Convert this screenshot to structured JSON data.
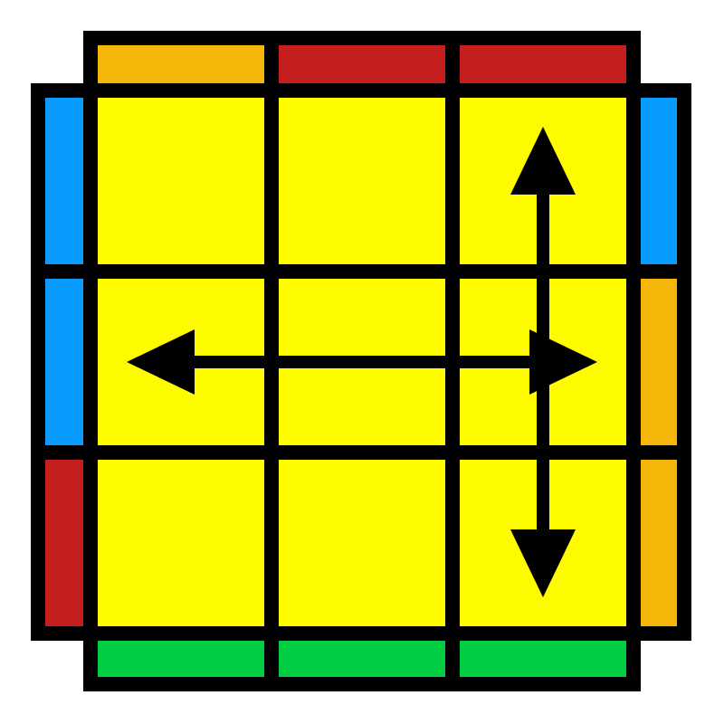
{
  "diagram": {
    "type": "rubiks-oll-top-view",
    "colors": {
      "yellow": "#FFFC00",
      "orange": "#F5B60A",
      "red": "#C41E1E",
      "blue": "#0A9BFF",
      "green": "#00CC44",
      "outline": "#000000",
      "arrow": "#000000"
    },
    "top_face": [
      [
        "yellow",
        "yellow",
        "yellow"
      ],
      [
        "yellow",
        "yellow",
        "yellow"
      ],
      [
        "yellow",
        "yellow",
        "yellow"
      ]
    ],
    "side_stickers": {
      "back": [
        "orange",
        "red",
        "red"
      ],
      "left": [
        "blue",
        "blue",
        "red"
      ],
      "right": [
        "blue",
        "orange",
        "orange"
      ],
      "front": [
        "green",
        "green",
        "green"
      ]
    },
    "arrows": [
      {
        "name": "swap-middle-row-arrow",
        "from": [
          1,
          0
        ],
        "to": [
          1,
          2
        ],
        "double_headed": true
      },
      {
        "name": "swap-right-column-arrow",
        "from": [
          0,
          2
        ],
        "to": [
          2,
          2
        ],
        "double_headed": true
      }
    ]
  }
}
